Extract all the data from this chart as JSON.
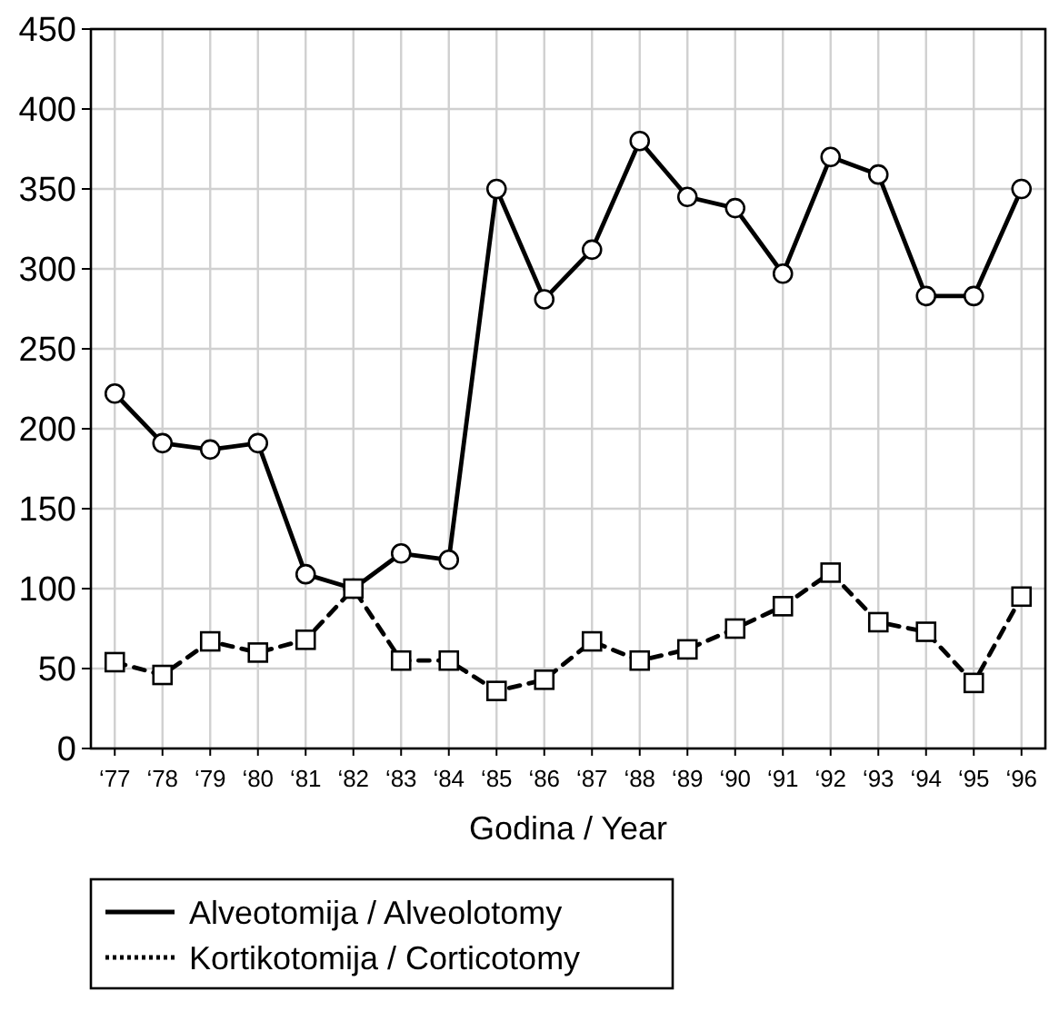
{
  "chart_data": {
    "type": "line",
    "xlabel": "Godina / Year",
    "categories": [
      "‘77",
      "‘78",
      "‘79",
      "‘80",
      "‘81",
      "‘82",
      "‘83",
      "‘84",
      "‘85",
      "‘86",
      "‘87",
      "‘88",
      "‘89",
      "‘90",
      "‘91",
      "‘92",
      "‘93",
      "‘94",
      "‘95",
      "‘96"
    ],
    "series": [
      {
        "name": "Alveotomija / Alveolotomy",
        "color": "#000000",
        "marker": "circle",
        "line_style": "solid",
        "values": [
          222,
          191,
          187,
          191,
          109,
          100,
          122,
          118,
          350,
          281,
          312,
          380,
          345,
          338,
          297,
          370,
          359,
          283,
          283,
          350
        ]
      },
      {
        "name": "Kortikotomija / Corticotomy",
        "color": "#000000",
        "marker": "square",
        "line_style": "dashed",
        "values": [
          54,
          46,
          67,
          60,
          68,
          100,
          55,
          55,
          36,
          43,
          67,
          55,
          62,
          75,
          89,
          110,
          79,
          73,
          41,
          95
        ]
      }
    ],
    "ylim": [
      0,
      450
    ],
    "yticks": [
      0,
      50,
      100,
      150,
      200,
      250,
      300,
      350,
      400,
      450
    ],
    "grid": true,
    "legend": "bottom"
  }
}
